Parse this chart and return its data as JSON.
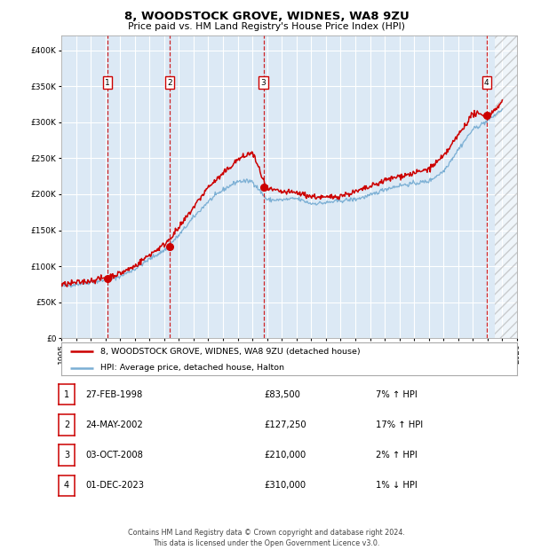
{
  "title": "8, WOODSTOCK GROVE, WIDNES, WA8 9ZU",
  "subtitle": "Price paid vs. HM Land Registry's House Price Index (HPI)",
  "ylim": [
    0,
    420000
  ],
  "xlim": [
    1995,
    2026
  ],
  "yticks": [
    0,
    50000,
    100000,
    150000,
    200000,
    250000,
    300000,
    350000,
    400000
  ],
  "ytick_labels": [
    "£0",
    "£50K",
    "£100K",
    "£150K",
    "£200K",
    "£250K",
    "£300K",
    "£350K",
    "£400K"
  ],
  "xticks": [
    1995,
    1996,
    1997,
    1998,
    1999,
    2000,
    2001,
    2002,
    2003,
    2004,
    2005,
    2006,
    2007,
    2008,
    2009,
    2010,
    2011,
    2012,
    2013,
    2014,
    2015,
    2016,
    2017,
    2018,
    2019,
    2020,
    2021,
    2022,
    2023,
    2024,
    2025,
    2026
  ],
  "background_color": "#dce9f5",
  "grid_color": "#ffffff",
  "red_line_color": "#cc0000",
  "blue_line_color": "#7bafd4",
  "sale_dot_color": "#cc0000",
  "vline_color": "#cc0000",
  "number_box_color": "#cc0000",
  "hatch_start": 2024.5,
  "transactions": [
    {
      "num": 1,
      "year": 1998.15,
      "price": 83500,
      "label": "27-FEB-1998",
      "amount": "£83,500",
      "pct": "7% ↑ HPI"
    },
    {
      "num": 2,
      "year": 2002.39,
      "price": 127250,
      "label": "24-MAY-2002",
      "amount": "£127,250",
      "pct": "17% ↑ HPI"
    },
    {
      "num": 3,
      "year": 2008.75,
      "price": 210000,
      "label": "03-OCT-2008",
      "amount": "£210,000",
      "pct": "2% ↑ HPI"
    },
    {
      "num": 4,
      "year": 2023.92,
      "price": 310000,
      "label": "01-DEC-2023",
      "amount": "£310,000",
      "pct": "1% ↓ HPI"
    }
  ],
  "legend_entries": [
    "8, WOODSTOCK GROVE, WIDNES, WA8 9ZU (detached house)",
    "HPI: Average price, detached house, Halton"
  ],
  "footer": "Contains HM Land Registry data © Crown copyright and database right 2024.\nThis data is licensed under the Open Government Licence v3.0.",
  "hpi_years": [
    1995,
    1996,
    1997,
    1998,
    1999,
    2000,
    2001,
    2002,
    2003,
    2004,
    2005,
    2006,
    2007,
    2008,
    2009,
    2010,
    2011,
    2012,
    2013,
    2014,
    2015,
    2016,
    2017,
    2018,
    2019,
    2020,
    2021,
    2022,
    2023,
    2024,
    2025
  ],
  "hpi_prices": [
    72000,
    75000,
    78000,
    80500,
    86000,
    96000,
    110000,
    122000,
    143000,
    168000,
    190000,
    206000,
    218000,
    218000,
    192000,
    192000,
    194000,
    187000,
    188000,
    191000,
    193000,
    198000,
    207000,
    212000,
    215000,
    218000,
    232000,
    262000,
    290000,
    302000,
    318000
  ],
  "red_years": [
    1995,
    1996,
    1997,
    1998,
    1999,
    2000,
    2001,
    2002,
    2003,
    2004,
    2005,
    2006,
    2007,
    2008,
    2009,
    2010,
    2011,
    2012,
    2013,
    2014,
    2015,
    2016,
    2017,
    2018,
    2019,
    2020,
    2021,
    2022,
    2023,
    2024,
    2025
  ],
  "red_prices": [
    74000,
    77000,
    80000,
    84000,
    90000,
    100000,
    116000,
    130000,
    153000,
    182000,
    210000,
    228000,
    248000,
    258000,
    207000,
    203000,
    202000,
    197000,
    195000,
    198000,
    203000,
    210000,
    219000,
    225000,
    229000,
    235000,
    252000,
    282000,
    312000,
    308000,
    328000
  ]
}
